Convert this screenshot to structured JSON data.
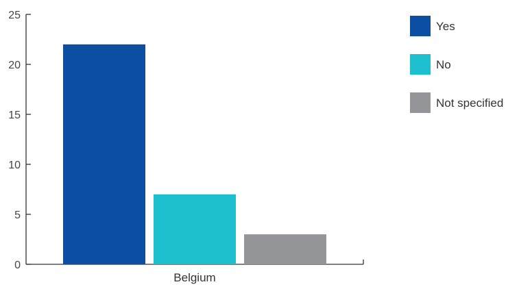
{
  "chart_data": {
    "type": "bar",
    "categories": [
      "Belgium"
    ],
    "series": [
      {
        "name": "Yes",
        "values": [
          22
        ],
        "color": "#0B4EA2"
      },
      {
        "name": "No",
        "values": [
          7
        ],
        "color": "#1EBFCF"
      },
      {
        "name": "Not specified",
        "values": [
          3
        ],
        "color": "#939598"
      }
    ],
    "yticks": [
      0,
      5,
      10,
      15,
      20,
      25
    ],
    "ylim": [
      0,
      25
    ],
    "title": "",
    "xlabel": "",
    "ylabel": "",
    "grid": false,
    "legend_position": "right"
  }
}
